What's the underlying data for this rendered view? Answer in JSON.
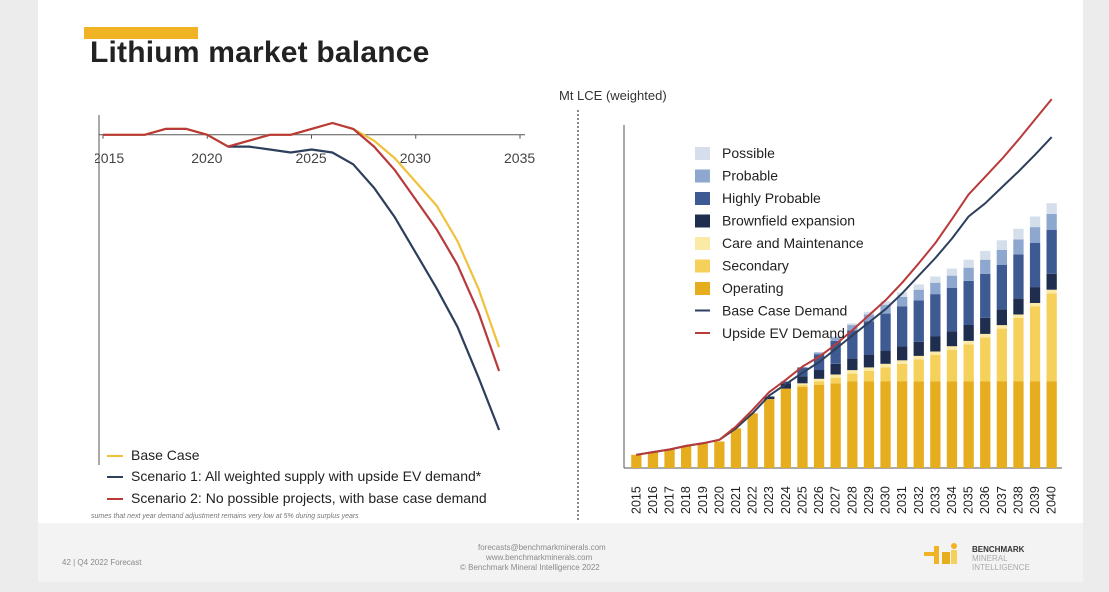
{
  "title": "Lithium market balance",
  "accent_color": "#f0b323",
  "footer": {
    "page_info": "42 | Q4 2022 Forecast",
    "contact_lines": [
      "forecasts@benchmarkminerals.com",
      "www.benchmarkminerals.com",
      "© Benchmark Mineral Intelligence 2022"
    ],
    "logo_lines": [
      "BENCHMARK",
      "MINERAL",
      "INTELLIGENCE"
    ]
  },
  "footnote": "sumes that next year demand adjustment remains very low at 5% during surplus years",
  "chart_data": [
    {
      "type": "line",
      "x_ticks": [
        "2015",
        "2020",
        "2025",
        "2030",
        "2035"
      ],
      "x_tick_values": [
        2015,
        2020,
        2025,
        2030,
        2035
      ],
      "xlim": [
        2015,
        2035
      ],
      "ylim": [
        -100,
        5
      ],
      "series": [
        {
          "name": "Base Case",
          "color": "#f0c23b",
          "x": [
            2015,
            2016,
            2017,
            2018,
            2019,
            2020,
            2021,
            2022,
            2023,
            2024,
            2025,
            2026,
            2027,
            2028,
            2029,
            2030,
            2031,
            2032,
            2033,
            2034
          ],
          "y": [
            0,
            0,
            0,
            2,
            2,
            0,
            -4,
            -2,
            0,
            0,
            2,
            4,
            2,
            -2,
            -8,
            -16,
            -24,
            -36,
            -52,
            -72
          ]
        },
        {
          "name": "Scenario 1: All weighted supply with upside EV demand*",
          "color": "#2e3f5c",
          "x": [
            2021,
            2022,
            2023,
            2024,
            2025,
            2026,
            2027,
            2028,
            2029,
            2030,
            2031,
            2032,
            2033,
            2034
          ],
          "y": [
            -4,
            -4,
            -5,
            -6,
            -5,
            -6,
            -10,
            -18,
            -28,
            -40,
            -52,
            -65,
            -82,
            -100
          ]
        },
        {
          "name": "Scenario 2: No possible projects, with base case demand",
          "color": "#b83a3a",
          "x": [
            2015,
            2016,
            2017,
            2018,
            2019,
            2020,
            2021,
            2022,
            2023,
            2024,
            2025,
            2026,
            2027,
            2028,
            2029,
            2030,
            2031,
            2032,
            2033,
            2034
          ],
          "y": [
            0,
            0,
            0,
            2,
            2,
            0,
            -4,
            -2,
            0,
            0,
            2,
            4,
            2,
            -4,
            -12,
            -22,
            -32,
            -44,
            -60,
            -80
          ]
        }
      ],
      "legend": "bottom-left"
    },
    {
      "type": "bar",
      "ylabel": "Mt LCE (weighted)",
      "categories": [
        "2015",
        "2016",
        "2017",
        "2018",
        "2019",
        "2020",
        "2021",
        "2022",
        "2023",
        "2024",
        "2025",
        "2026",
        "2027",
        "2028",
        "2029",
        "2030",
        "2031",
        "2032",
        "2033",
        "2034",
        "2035",
        "2036",
        "2037",
        "2038",
        "2039",
        "2040"
      ],
      "ylim": [
        0,
        4.0
      ],
      "stacked": true,
      "series": [
        {
          "name": "Operating",
          "color": "#e6ad1e",
          "values": [
            0.15,
            0.18,
            0.21,
            0.25,
            0.28,
            0.3,
            0.45,
            0.62,
            0.78,
            0.9,
            0.92,
            0.94,
            0.96,
            0.98,
            0.98,
            0.98,
            0.98,
            0.98,
            0.98,
            0.98,
            0.98,
            0.98,
            0.98,
            0.98,
            0.98,
            0.98
          ]
        },
        {
          "name": "Secondary",
          "color": "#f5d15c",
          "values": [
            0,
            0,
            0,
            0,
            0,
            0,
            0,
            0,
            0,
            0,
            0.02,
            0.04,
            0.06,
            0.09,
            0.12,
            0.16,
            0.2,
            0.25,
            0.3,
            0.36,
            0.42,
            0.5,
            0.6,
            0.72,
            0.85,
            1.0
          ]
        },
        {
          "name": "Care and Maintenance",
          "color": "#fbe9a6",
          "values": [
            0,
            0,
            0,
            0,
            0,
            0,
            0,
            0,
            0,
            0,
            0.02,
            0.03,
            0.04,
            0.04,
            0.04,
            0.04,
            0.04,
            0.04,
            0.04,
            0.04,
            0.04,
            0.04,
            0.04,
            0.04,
            0.04,
            0.04
          ]
        },
        {
          "name": "Brownfield expansion",
          "color": "#1f2d4f",
          "values": [
            0,
            0,
            0,
            0,
            0,
            0,
            0,
            0,
            0.03,
            0.06,
            0.08,
            0.1,
            0.12,
            0.13,
            0.14,
            0.15,
            0.16,
            0.16,
            0.17,
            0.17,
            0.18,
            0.18,
            0.18,
            0.18,
            0.18,
            0.18
          ]
        },
        {
          "name": "Highly Probable",
          "color": "#3d5a92",
          "values": [
            0,
            0,
            0,
            0,
            0,
            0,
            0,
            0,
            0,
            0.02,
            0.1,
            0.18,
            0.26,
            0.32,
            0.38,
            0.42,
            0.45,
            0.47,
            0.48,
            0.49,
            0.5,
            0.5,
            0.5,
            0.5,
            0.5,
            0.5
          ]
        },
        {
          "name": "Probable",
          "color": "#8ea7cf",
          "values": [
            0,
            0,
            0,
            0,
            0,
            0,
            0,
            0,
            0,
            0,
            0,
            0.02,
            0.04,
            0.06,
            0.08,
            0.1,
            0.11,
            0.12,
            0.13,
            0.14,
            0.15,
            0.16,
            0.17,
            0.17,
            0.18,
            0.18
          ]
        },
        {
          "name": "Possible",
          "color": "#d5deeb",
          "values": [
            0,
            0,
            0,
            0,
            0,
            0,
            0,
            0,
            0,
            0,
            0,
            0,
            0.01,
            0.02,
            0.03,
            0.04,
            0.05,
            0.06,
            0.07,
            0.08,
            0.09,
            0.1,
            0.11,
            0.12,
            0.12,
            0.12
          ]
        }
      ],
      "lines": [
        {
          "name": "Base Case Demand",
          "color": "#2e3f5c",
          "values": [
            0.15,
            0.18,
            0.21,
            0.25,
            0.28,
            0.32,
            0.45,
            0.62,
            0.82,
            0.95,
            1.08,
            1.2,
            1.35,
            1.5,
            1.65,
            1.8,
            1.98,
            2.18,
            2.38,
            2.6,
            2.85,
            3.0,
            3.18,
            3.36,
            3.55,
            3.75
          ]
        },
        {
          "name": "Upside EV Demand",
          "color": "#b83a3a",
          "values": [
            0.15,
            0.18,
            0.21,
            0.25,
            0.28,
            0.32,
            0.47,
            0.66,
            0.86,
            1.0,
            1.15,
            1.26,
            1.4,
            1.56,
            1.73,
            1.9,
            2.1,
            2.32,
            2.55,
            2.82,
            3.1,
            3.3,
            3.5,
            3.72,
            3.95,
            4.18
          ]
        }
      ],
      "legend": "top-left"
    }
  ]
}
